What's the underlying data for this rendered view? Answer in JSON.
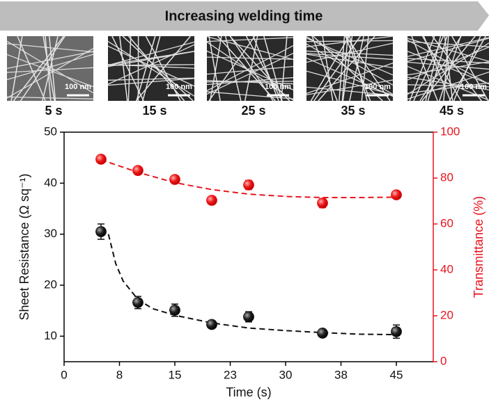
{
  "header": {
    "banner": "Increasing welding time",
    "panels": [
      {
        "scale": "100 nm",
        "label": "5 s"
      },
      {
        "scale": "100 nm",
        "label": "15 s"
      },
      {
        "scale": "100 nm",
        "label": "25 s"
      },
      {
        "scale": "100 nm",
        "label": "35 s"
      },
      {
        "scale": "100 nm",
        "label": "45 s"
      }
    ]
  },
  "chart_data": {
    "type": "scatter",
    "xlabel": "Time (s)",
    "ylabel": "Sheet Resistance (Ω sq⁻¹)",
    "y2label": "Transmittance (%)",
    "x": [
      5,
      10,
      15,
      20,
      25,
      35,
      45
    ],
    "xlim": [
      0,
      50
    ],
    "xticks": [
      0,
      {
        "value": 7.5,
        "label": "8"
      },
      15,
      {
        "value": 22.5,
        "label": "23"
      },
      30,
      {
        "value": 37.5,
        "label": "38"
      },
      45
    ],
    "ylim": [
      5,
      50
    ],
    "yticks": [
      10,
      20,
      30,
      40,
      50
    ],
    "y2lim": [
      0,
      100
    ],
    "y2ticks": [
      0,
      20,
      40,
      60,
      80,
      100
    ],
    "series": [
      {
        "color": "#111111",
        "values": [
          30.5,
          16.6,
          15.1,
          12.3,
          13.8,
          10.6,
          10.9
        ],
        "errors": [
          1.5,
          1.2,
          1.2,
          0.5,
          1.0,
          0.5,
          1.3
        ]
      },
      {
        "color": "#e8141e",
        "axis": "y2",
        "values": [
          88.2,
          83.3,
          79.4,
          70.3,
          77.0,
          69.1,
          72.7
        ],
        "errors": [
          1.0,
          1.0,
          1.0,
          1.0,
          2.0,
          2.0,
          1.0
        ]
      }
    ],
    "fits": [
      {
        "color": "#111111",
        "x": [
          6,
          7,
          8,
          10,
          12,
          15,
          20,
          25,
          30,
          35,
          40,
          45
        ],
        "values": [
          30,
          24.2,
          20.8,
          17.2,
          15.4,
          14.1,
          12.6,
          11.6,
          11.1,
          10.7,
          10.4,
          10.3
        ]
      },
      {
        "color": "#e8141e",
        "axis": "y2",
        "x": [
          5,
          10,
          15,
          20,
          25,
          30,
          35,
          40,
          45
        ],
        "values": [
          88,
          82.5,
          78,
          75,
          73,
          72,
          71.5,
          71.5,
          71.7
        ]
      }
    ]
  }
}
